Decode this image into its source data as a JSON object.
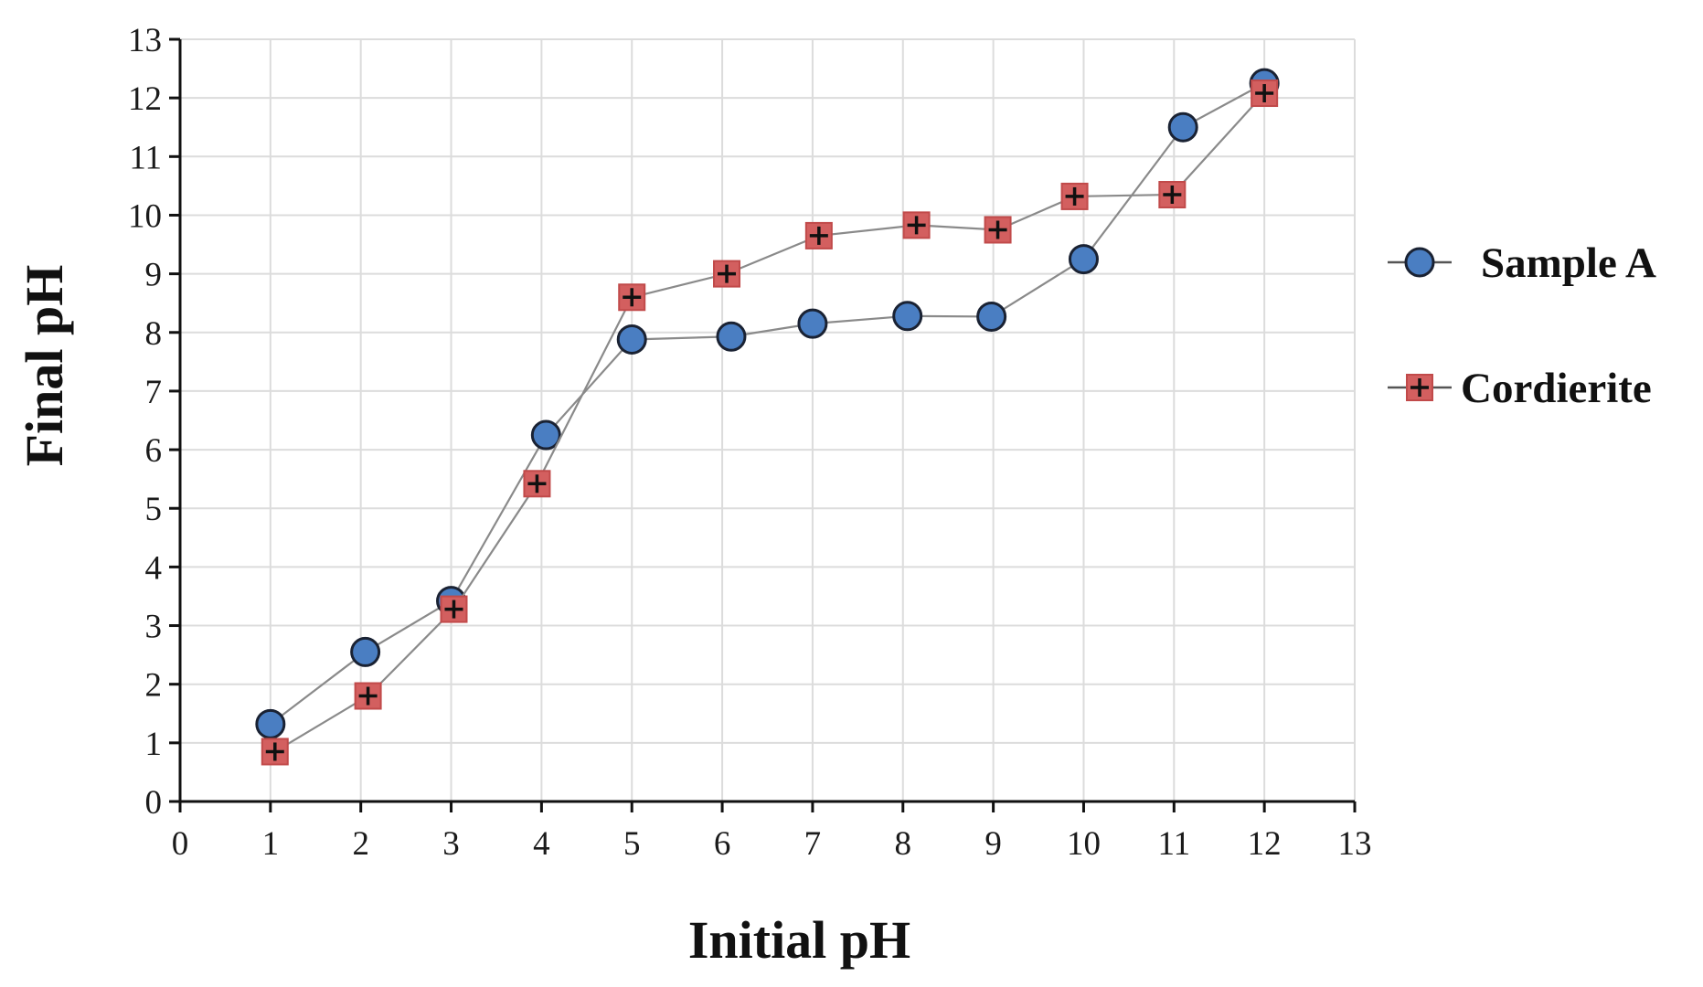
{
  "chart_data": {
    "type": "line",
    "title": "",
    "xlabel": "Initial pH",
    "ylabel": "Final pH",
    "xlim": [
      0,
      13
    ],
    "ylim": [
      0,
      13
    ],
    "xticks": [
      0,
      1,
      2,
      3,
      4,
      5,
      6,
      7,
      8,
      9,
      10,
      11,
      12,
      13
    ],
    "yticks": [
      0,
      1,
      2,
      3,
      4,
      5,
      6,
      7,
      8,
      9,
      10,
      11,
      12,
      13
    ],
    "grid": true,
    "legend_position": "right",
    "series": [
      {
        "name": "Sample A",
        "marker": "circle",
        "color": "#4a7ec2",
        "x": [
          1.0,
          2.05,
          3.0,
          4.05,
          5.0,
          6.1,
          7.0,
          8.05,
          8.98,
          10.0,
          11.1,
          12.0
        ],
        "y": [
          1.32,
          2.55,
          3.42,
          6.25,
          7.88,
          7.93,
          8.15,
          8.28,
          8.27,
          9.25,
          11.5,
          12.25
        ]
      },
      {
        "name": "Cordierite",
        "marker": "square-plus",
        "color": "#d35f5f",
        "x": [
          1.05,
          2.08,
          3.03,
          3.95,
          5.0,
          6.05,
          7.07,
          8.15,
          9.05,
          9.9,
          10.98,
          12.0
        ],
        "y": [
          0.85,
          1.8,
          3.28,
          5.42,
          8.6,
          9.0,
          9.65,
          9.83,
          9.75,
          10.32,
          10.35,
          12.08
        ]
      }
    ]
  }
}
